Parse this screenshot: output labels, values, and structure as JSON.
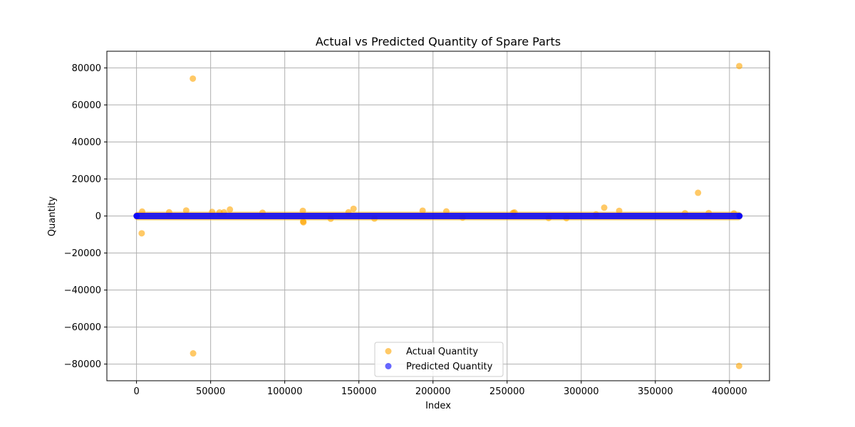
{
  "chart_data": {
    "type": "scatter",
    "title": "Actual vs Predicted Quantity of Spare Parts",
    "xlabel": "Index",
    "ylabel": "Quantity",
    "xlim": [
      -20000,
      427000
    ],
    "ylim": [
      -89000,
      89000
    ],
    "xticks": [
      0,
      50000,
      100000,
      150000,
      200000,
      250000,
      300000,
      350000,
      400000
    ],
    "yticks": [
      -80000,
      -60000,
      -40000,
      -20000,
      0,
      20000,
      40000,
      60000,
      80000
    ],
    "grid": true,
    "legend_position": "lower center",
    "series": [
      {
        "name": "Actual Quantity",
        "color": "#ffa500",
        "alpha": 0.6,
        "x_range": [
          0,
          406800
        ],
        "y_baseline": 0,
        "points": [
          [
            38000,
            74215
          ],
          [
            38200,
            -74215
          ],
          [
            406600,
            80995
          ],
          [
            406500,
            -80995
          ],
          [
            378800,
            12540
          ],
          [
            3500,
            -9360
          ],
          [
            146400,
            3906
          ],
          [
            315500,
            4500
          ],
          [
            63000,
            3500
          ],
          [
            193000,
            2900
          ],
          [
            325600,
            2800
          ],
          [
            209000,
            2500
          ],
          [
            112200,
            2800
          ],
          [
            112400,
            -3000
          ],
          [
            112600,
            -3400
          ],
          [
            33500,
            3000
          ],
          [
            3800,
            2400
          ],
          [
            22000,
            2000
          ],
          [
            51000,
            2200
          ],
          [
            56000,
            1900
          ],
          [
            59000,
            2000
          ],
          [
            85000,
            1800
          ],
          [
            143000,
            2000
          ],
          [
            254000,
            1700
          ],
          [
            255000,
            1900
          ],
          [
            370000,
            1500
          ],
          [
            386000,
            1600
          ],
          [
            403000,
            1400
          ],
          [
            131000,
            -1500
          ],
          [
            160500,
            -1400
          ],
          [
            290000,
            -1200
          ],
          [
            278000,
            -1100
          ],
          [
            220000,
            -900
          ],
          [
            310000,
            900
          ]
        ]
      },
      {
        "name": "Predicted Quantity",
        "color": "#0000ff",
        "alpha": 0.6,
        "x_range": [
          0,
          406800
        ],
        "y_baseline": 0
      }
    ]
  }
}
